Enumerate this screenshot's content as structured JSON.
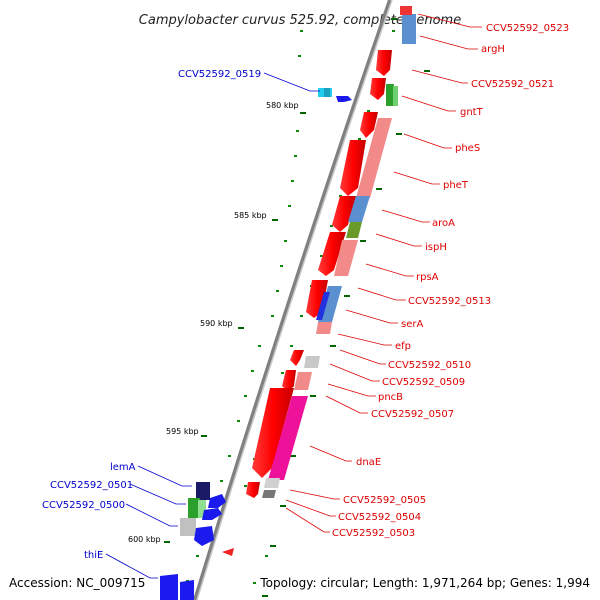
{
  "title": "Campylobacter curvus 525.92, complete genome",
  "accession": "Accession: NC_009715",
  "topology": "Topology: circular; Length: 1,971,264 bp; Genes: 1,994",
  "colors": {
    "backbone": "#808080",
    "forward_gene_label": "#0000cc",
    "reverse_gene_label": "#dd0000",
    "tick": "#006600"
  },
  "kbp_ticks": [
    "580 kbp",
    "585 kbp",
    "590 kbp",
    "595 kbp",
    "600 kbp"
  ],
  "reverse_genes": [
    {
      "name": "CCV52592_0523"
    },
    {
      "name": "argH"
    },
    {
      "name": "CCV52592_0521"
    },
    {
      "name": "gntT"
    },
    {
      "name": "pheS"
    },
    {
      "name": "pheT"
    },
    {
      "name": "aroA"
    },
    {
      "name": "ispH"
    },
    {
      "name": "rpsA"
    },
    {
      "name": "CCV52592_0513"
    },
    {
      "name": "serA"
    },
    {
      "name": "efp"
    },
    {
      "name": "CCV52592_0510"
    },
    {
      "name": "CCV52592_0509"
    },
    {
      "name": "pncB"
    },
    {
      "name": "CCV52592_0507"
    },
    {
      "name": "dnaE"
    },
    {
      "name": "CCV52592_0505"
    },
    {
      "name": "CCV52592_0504"
    },
    {
      "name": "CCV52592_0503"
    }
  ],
  "forward_genes": [
    {
      "name": "CCV52592_0519"
    },
    {
      "name": "lemA"
    },
    {
      "name": "CCV52592_0501"
    },
    {
      "name": "CCV52592_0500"
    },
    {
      "name": "thiE"
    }
  ]
}
